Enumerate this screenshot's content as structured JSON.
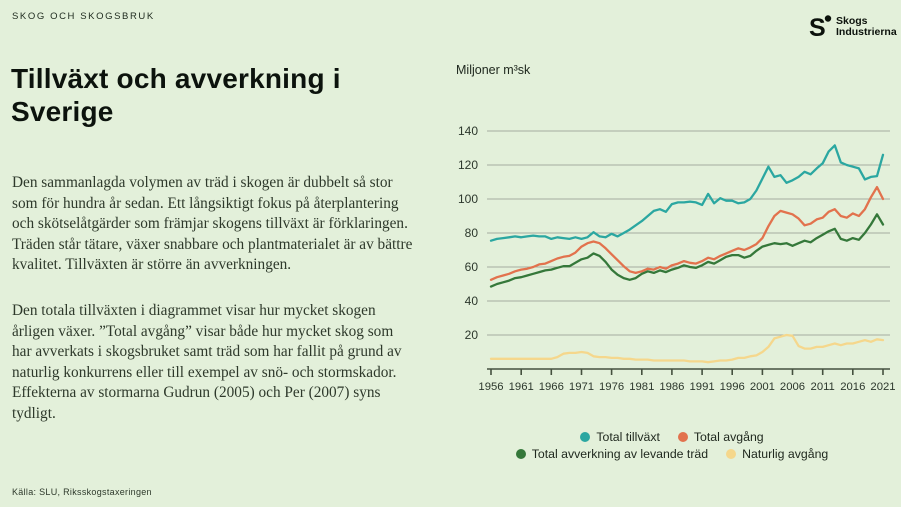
{
  "header": {
    "eyebrow": "SKOG OCH SKOGSBRUK",
    "logo": {
      "line1": "Skogs",
      "line2": "Industrierna"
    }
  },
  "article": {
    "title": "Tillväxt och avverkning i Sverige",
    "paragraphs": [
      "Den sammanlagda volymen av träd i skogen är dubbelt så stor som för hundra år sedan. Ett långsiktigt fokus på återplantering och skötselåtgärder som främjar skogens tillväxt är förklaringen. Träden står tätare, växer snabbare och plantmaterialet är av bättre kvalitet. Tillväxten är större än avverkningen.",
      "Den totala tillväxten i diagrammet visar hur mycket skogen årligen växer. ”Total avgång” visar både hur mycket skog som har avverkats i skogsbruket samt träd som har fallit på grund av naturlig konkurrens eller till exempel av snö- och stormskador. Effekterna av stormarna Gudrun (2005) och Per (2007) syns tydligt."
    ],
    "source": "Källa: SLU, Riksskogstaxeringen"
  },
  "chart_data": {
    "type": "line",
    "title": "",
    "unit_label": "Miljoner m³sk",
    "xlabel": "",
    "ylabel": "Miljoner m³sk",
    "ylim": [
      0,
      140
    ],
    "grid": true,
    "legend_position": "bottom",
    "colors": {
      "background": "#e3f0da",
      "gridline": "#a6aca0",
      "axis": "#45513f"
    },
    "x": [
      1956,
      1957,
      1958,
      1959,
      1960,
      1961,
      1962,
      1963,
      1964,
      1965,
      1966,
      1967,
      1968,
      1969,
      1970,
      1971,
      1972,
      1973,
      1974,
      1975,
      1976,
      1977,
      1978,
      1979,
      1980,
      1981,
      1982,
      1983,
      1984,
      1985,
      1986,
      1987,
      1988,
      1989,
      1990,
      1991,
      1992,
      1993,
      1994,
      1995,
      1996,
      1997,
      1998,
      1999,
      2000,
      2001,
      2002,
      2003,
      2004,
      2005,
      2006,
      2007,
      2008,
      2009,
      2010,
      2011,
      2012,
      2013,
      2014,
      2015,
      2016,
      2017,
      2018,
      2019,
      2020,
      2021
    ],
    "xticks": [
      1956,
      1961,
      1966,
      1971,
      1976,
      1981,
      1986,
      1991,
      1996,
      2001,
      2006,
      2011,
      2016,
      2021
    ],
    "yticks": [
      20,
      40,
      60,
      80,
      100,
      120,
      140
    ],
    "series": [
      {
        "name": "Total tillväxt",
        "color": "#2ba7a1",
        "values": [
          75.5,
          76.5,
          77,
          77.5,
          78,
          77.5,
          78,
          78.5,
          78,
          78,
          76.5,
          77.5,
          77,
          76.5,
          77.5,
          76.5,
          77.5,
          80.5,
          78,
          77.5,
          79.5,
          78,
          80,
          82,
          84.5,
          87,
          90,
          93,
          94,
          92.5,
          97,
          98,
          98,
          98.5,
          98,
          96.5,
          103,
          97.5,
          100.5,
          99,
          99,
          97.5,
          98,
          100,
          105,
          112,
          119,
          113,
          114,
          109.5,
          111,
          113,
          116,
          114.5,
          118,
          121,
          128,
          131.5,
          121.5,
          120,
          119,
          118,
          111.5,
          113,
          113.5,
          126
        ]
      },
      {
        "name": "Total avgång",
        "color": "#e2724d",
        "values": [
          52.5,
          54,
          55,
          56,
          57.5,
          58.5,
          59,
          60,
          61.5,
          62,
          63.5,
          65,
          66,
          66.5,
          68.5,
          72,
          74,
          75,
          74,
          71,
          67.5,
          64,
          60.5,
          57.5,
          56.5,
          57.5,
          59,
          58.5,
          60,
          59,
          61,
          62,
          63.5,
          62.5,
          62,
          63.5,
          65.5,
          64.5,
          66.5,
          68,
          69.5,
          71,
          70,
          71.5,
          73.5,
          77,
          84,
          90,
          93,
          92,
          91,
          88.5,
          84.5,
          85.5,
          88,
          89,
          92.5,
          94,
          90,
          89,
          91.5,
          90,
          94,
          101,
          107,
          100
        ]
      },
      {
        "name": "Total avverkning av levande träd",
        "color": "#35783a",
        "values": [
          48.5,
          50,
          51,
          52,
          53.5,
          54,
          55,
          56,
          57,
          58,
          58.5,
          59.5,
          60.5,
          60.5,
          62.5,
          64.5,
          65.5,
          68,
          66.5,
          63,
          58.5,
          55.5,
          53.5,
          52.5,
          53.5,
          56,
          57.5,
          56.5,
          58,
          57,
          58.5,
          59.5,
          61,
          60,
          59.5,
          61,
          63,
          62,
          64,
          66,
          67,
          67,
          65.5,
          66.5,
          69.5,
          72,
          73,
          74,
          73.5,
          74,
          72.5,
          74,
          75.5,
          74.5,
          77,
          79,
          81,
          82.5,
          76.5,
          75.5,
          77,
          76,
          80,
          85,
          91,
          85
        ]
      },
      {
        "name": "Naturlig avgång",
        "color": "#f5d78c",
        "values": [
          6,
          6,
          6,
          6,
          6,
          6,
          6,
          6,
          6,
          6,
          6,
          7,
          9,
          9.5,
          9.5,
          10,
          9.5,
          7.5,
          7,
          7,
          6.5,
          6.5,
          6,
          6,
          5.5,
          5.5,
          5.5,
          5,
          5,
          5,
          5,
          5,
          5,
          4.5,
          4.5,
          4.5,
          4,
          4.5,
          5,
          5,
          5.5,
          6.5,
          6.5,
          7.5,
          8,
          10,
          13,
          18,
          19,
          20,
          19.5,
          13.5,
          12,
          12,
          13,
          13,
          14,
          15,
          14,
          15,
          15,
          16,
          17,
          16,
          17.5,
          17
        ]
      }
    ]
  }
}
